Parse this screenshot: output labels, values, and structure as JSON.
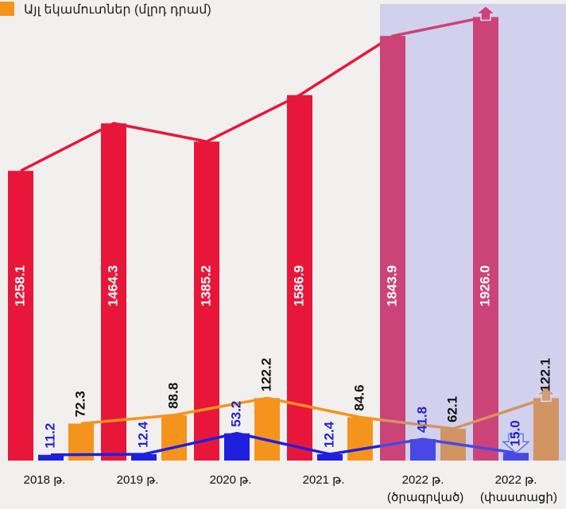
{
  "chart_data": {
    "type": "bar",
    "categories": [
      "2018 թ.",
      "2019 թ.",
      "2020 թ.",
      "2021 թ.",
      "2022 թ. (ծրագրված)",
      "2022 թ. (փաստացի)"
    ],
    "series": [
      {
        "color": "#e8173a",
        "values": [
          1258.1,
          1464.3,
          1385.2,
          1586.9,
          1843.9,
          1926.0
        ],
        "value_labels": [
          "1258.1",
          "1464.3",
          "1385.2",
          "1586.9",
          "1843.9",
          "1926.0"
        ]
      },
      {
        "color": "#1f1fe0",
        "axis": "y2",
        "values": [
          11.2,
          12.4,
          53.2,
          12.4,
          41.8,
          15.0
        ],
        "value_labels": [
          "11.2",
          "12.4",
          "53.2",
          "12.4",
          "41.8",
          "15.0"
        ]
      },
      {
        "name": "Այլ եկամուտներ (մլրդ դրամ)",
        "color": "#f5941c",
        "axis": "y2",
        "values": [
          72.3,
          88.8,
          122.2,
          84.6,
          62.1,
          122.1
        ]
      }
    ],
    "ylim": [
      0,
      2000
    ],
    "y2lim": [
      0,
      900
    ]
  }
}
